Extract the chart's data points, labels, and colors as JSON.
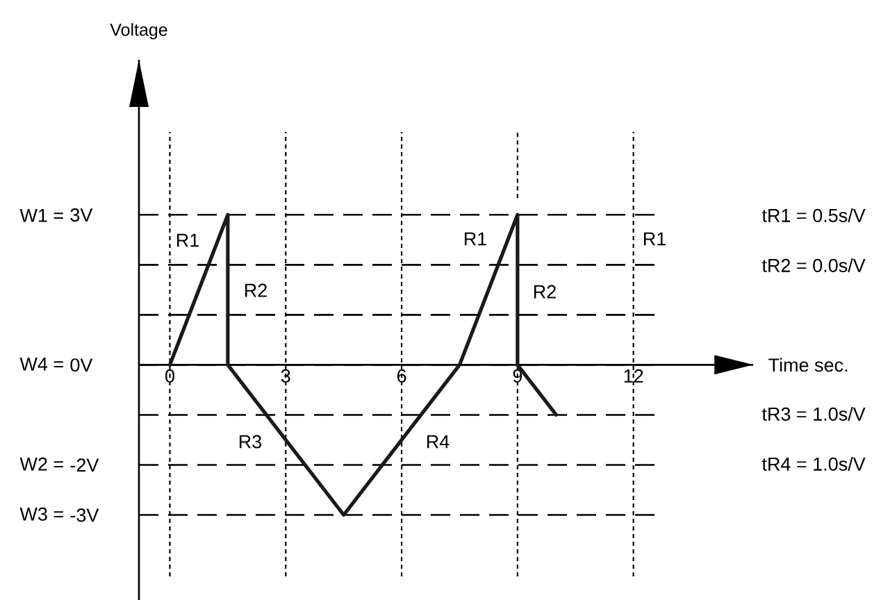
{
  "chart_data": {
    "type": "line",
    "xlabel": "Time sec.",
    "ylabel": "Voltage",
    "x": [
      0,
      1.5,
      1.5,
      4.5,
      7.5,
      9,
      9,
      10
    ],
    "values": [
      0,
      3,
      0,
      -3,
      0,
      3,
      0,
      -1
    ],
    "color": "#1a1a1a",
    "xlim": [
      -0.8,
      15.1
    ],
    "ylim": [
      -4.7,
      6.1
    ],
    "xticks": [
      0,
      3,
      6,
      9,
      12
    ],
    "yticks": [
      {
        "value": -3,
        "label": "-3V"
      },
      {
        "value": -2,
        "label": "-2V"
      },
      {
        "value": -1,
        "label": null
      },
      {
        "value": 0,
        "label": "0V"
      },
      {
        "value": 1,
        "label": null
      },
      {
        "value": 2,
        "label": null
      },
      {
        "value": 3,
        "label": "3V"
      }
    ],
    "grid": true,
    "annotations": [
      "R1",
      "R2",
      "R3",
      "R4",
      "R1",
      "R2",
      "R1",
      "tR1 = 0.5s/V",
      "tR2 = 0.0s/V",
      "tR3 = 1.0s/V",
      "tR4 = 1.0s/V",
      "W1 =",
      "W4 =",
      "W2 =",
      "W3 ="
    ]
  }
}
